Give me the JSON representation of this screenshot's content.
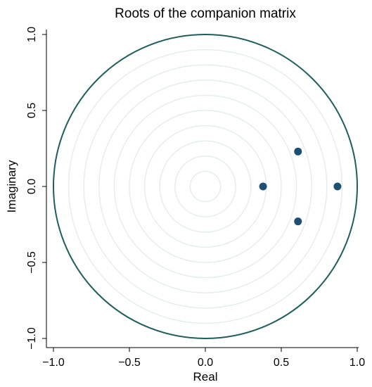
{
  "chart_data": {
    "type": "scatter",
    "title": "Roots of the companion matrix",
    "xlabel": "Real",
    "ylabel": "Imaginary",
    "xlim": [
      -1.0,
      1.0
    ],
    "ylim": [
      -1.0,
      1.0
    ],
    "xticks": [
      "−1.0",
      "−0.5",
      "0.0",
      "0.5",
      "1.0"
    ],
    "yticks": [
      "−1.0",
      "−0.5",
      "0.0",
      "0.5",
      "1.0"
    ],
    "unit_circle_radius": 1.0,
    "reference_ring_radii": [
      0.1,
      0.2,
      0.3,
      0.4,
      0.5,
      0.6,
      0.7,
      0.8,
      0.9
    ],
    "points": [
      {
        "x": 0.38,
        "y": 0.0
      },
      {
        "x": 0.61,
        "y": 0.23
      },
      {
        "x": 0.61,
        "y": -0.23
      },
      {
        "x": 0.87,
        "y": 0.0
      }
    ],
    "colors": {
      "unit_circle": "#1f5f5b",
      "rings": "#e3eeea",
      "points": "#1f4e73"
    },
    "grid": false
  }
}
